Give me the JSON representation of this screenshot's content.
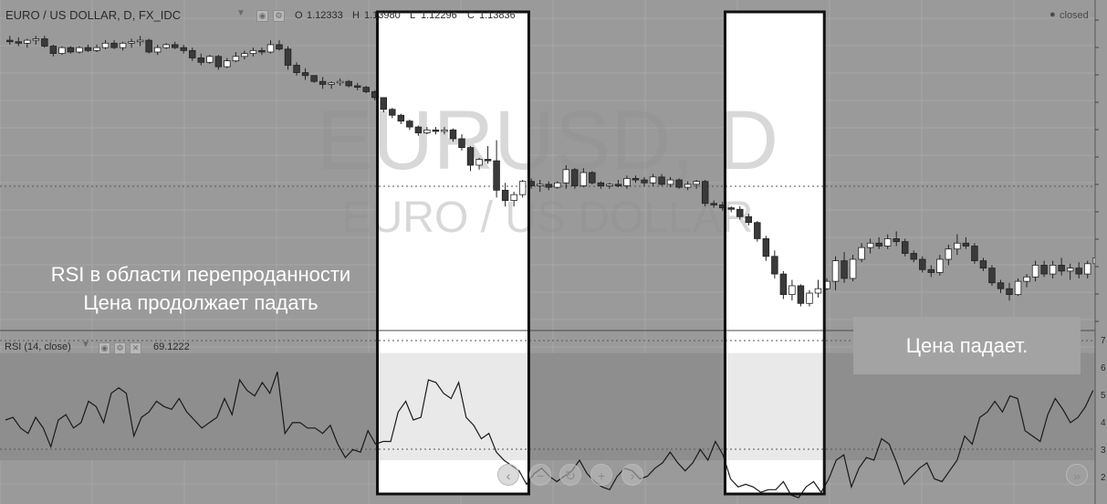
{
  "header": {
    "symbol": "EURO / US DOLLAR, D, FX_IDC",
    "o_label": "O",
    "o_value": "1.12333",
    "h_label": "H",
    "h_value": "1.13980",
    "l_label": "L",
    "l_value": "1.12296",
    "c_label": "C",
    "c_value": "1.13836",
    "status": "closed"
  },
  "watermark": {
    "main": "EURUSD, D",
    "sub": "EURO / US DOLLAR"
  },
  "rsi_header": {
    "name": "RSI (14, close)",
    "value": "69.1222"
  },
  "annotations": {
    "left_line1": "RSI в области перепроданности",
    "left_line2": "Цена продолжает падать",
    "right_box": "Цена падает."
  },
  "rsi_axis_labels": [
    "7",
    "6",
    "5",
    "4",
    "3",
    "2"
  ],
  "nav_icons": [
    "chevron-left-icon",
    "minus-icon",
    "reset-icon",
    "plus-icon",
    "chevron-right-icon",
    "fast-forward-icon"
  ],
  "colors": {
    "background": "#9a9a9a",
    "highlight": "#ffffff",
    "bear": "#3a3a3a",
    "bull": "#ffffff",
    "rsi_line": "#1a1a1a"
  },
  "chart_data": [
    {
      "type": "candlestick",
      "title": "EURO / US DOLLAR, D, FX_IDC",
      "series": [
        {
          "name": "EURUSD",
          "candles": [
            [
              1.125,
              1.128,
              1.122,
              1.124
            ],
            [
              1.124,
              1.127,
              1.121,
              1.123
            ],
            [
              1.123,
              1.126,
              1.12,
              1.125
            ],
            [
              1.125,
              1.128,
              1.122,
              1.126
            ],
            [
              1.126,
              1.128,
              1.12,
              1.121
            ],
            [
              1.121,
              1.122,
              1.114,
              1.116
            ],
            [
              1.116,
              1.121,
              1.115,
              1.12
            ],
            [
              1.12,
              1.121,
              1.116,
              1.117
            ],
            [
              1.117,
              1.121,
              1.116,
              1.12
            ],
            [
              1.12,
              1.122,
              1.117,
              1.118
            ],
            [
              1.118,
              1.122,
              1.117,
              1.12
            ],
            [
              1.12,
              1.125,
              1.119,
              1.123
            ],
            [
              1.123,
              1.125,
              1.119,
              1.12
            ],
            [
              1.12,
              1.124,
              1.118,
              1.123
            ],
            [
              1.123,
              1.126,
              1.12,
              1.124
            ],
            [
              1.124,
              1.128,
              1.121,
              1.125
            ],
            [
              1.125,
              1.126,
              1.116,
              1.117
            ],
            [
              1.117,
              1.122,
              1.115,
              1.12
            ],
            [
              1.12,
              1.123,
              1.119,
              1.122
            ],
            [
              1.122,
              1.124,
              1.119,
              1.12
            ],
            [
              1.12,
              1.122,
              1.116,
              1.118
            ],
            [
              1.118,
              1.12,
              1.111,
              1.113
            ],
            [
              1.113,
              1.116,
              1.108,
              1.11
            ],
            [
              1.11,
              1.115,
              1.109,
              1.114
            ],
            [
              1.114,
              1.115,
              1.105,
              1.107
            ],
            [
              1.107,
              1.113,
              1.106,
              1.111
            ],
            [
              1.111,
              1.117,
              1.11,
              1.114
            ],
            [
              1.114,
              1.118,
              1.112,
              1.116
            ],
            [
              1.116,
              1.12,
              1.114,
              1.118
            ],
            [
              1.118,
              1.12,
              1.115,
              1.117
            ],
            [
              1.117,
              1.125,
              1.116,
              1.122
            ],
            [
              1.122,
              1.125,
              1.118,
              1.119
            ],
            [
              1.119,
              1.121,
              1.105,
              1.108
            ],
            [
              1.108,
              1.11,
              1.101,
              1.103
            ],
            [
              1.103,
              1.106,
              1.098,
              1.101
            ],
            [
              1.101,
              1.101,
              1.096,
              1.097
            ],
            [
              1.097,
              1.1,
              1.092,
              1.095
            ],
            [
              1.095,
              1.097,
              1.092,
              1.096
            ],
            [
              1.096,
              1.099,
              1.094,
              1.097
            ],
            [
              1.097,
              1.098,
              1.093,
              1.094
            ],
            [
              1.094,
              1.096,
              1.091,
              1.093
            ],
            [
              1.093,
              1.094,
              1.089,
              1.09
            ],
            [
              1.09,
              1.091,
              1.084,
              1.086
            ],
            [
              1.086,
              1.086,
              1.076,
              1.078
            ],
            [
              1.078,
              1.079,
              1.072,
              1.074
            ],
            [
              1.074,
              1.075,
              1.068,
              1.07
            ],
            [
              1.07,
              1.071,
              1.064,
              1.066
            ],
            [
              1.066,
              1.067,
              1.06,
              1.062
            ],
            [
              1.062,
              1.066,
              1.061,
              1.064
            ],
            [
              1.064,
              1.066,
              1.061,
              1.063
            ],
            [
              1.063,
              1.066,
              1.061,
              1.064
            ],
            [
              1.064,
              1.065,
              1.056,
              1.058
            ],
            [
              1.058,
              1.061,
              1.05,
              1.052
            ],
            [
              1.052,
              1.053,
              1.036,
              1.04
            ],
            [
              1.04,
              1.045,
              1.037,
              1.044
            ],
            [
              1.044,
              1.053,
              1.041,
              1.043
            ],
            [
              1.043,
              1.057,
              1.018,
              1.023
            ],
            [
              1.023,
              1.028,
              1.012,
              1.016
            ],
            [
              1.016,
              1.022,
              1.012,
              1.02
            ],
            [
              1.02,
              1.03,
              1.018,
              1.029
            ],
            [
              1.029,
              1.031,
              1.024,
              1.026
            ],
            [
              1.026,
              1.03,
              1.022,
              1.027
            ],
            [
              1.027,
              1.029,
              1.023,
              1.025
            ],
            [
              1.025,
              1.029,
              1.024,
              1.028
            ],
            [
              1.028,
              1.04,
              1.024,
              1.037
            ],
            [
              1.037,
              1.038,
              1.024,
              1.026
            ],
            [
              1.026,
              1.038,
              1.025,
              1.035
            ],
            [
              1.035,
              1.036,
              1.027,
              1.028
            ],
            [
              1.028,
              1.029,
              1.024,
              1.026
            ],
            [
              1.026,
              1.028,
              1.024,
              1.027
            ],
            [
              1.027,
              1.03,
              1.025,
              1.026
            ],
            [
              1.026,
              1.033,
              1.024,
              1.031
            ],
            [
              1.031,
              1.033,
              1.028,
              1.03
            ],
            [
              1.03,
              1.032,
              1.026,
              1.028
            ],
            [
              1.028,
              1.034,
              1.026,
              1.032
            ],
            [
              1.032,
              1.034,
              1.026,
              1.027
            ],
            [
              1.027,
              1.032,
              1.025,
              1.03
            ],
            [
              1.03,
              1.031,
              1.024,
              1.025
            ],
            [
              1.025,
              1.029,
              1.023,
              1.027
            ],
            [
              1.027,
              1.03,
              1.024,
              1.029
            ],
            [
              1.029,
              1.03,
              1.012,
              1.014
            ],
            [
              1.014,
              1.016,
              1.011,
              1.013
            ],
            [
              1.013,
              1.015,
              1.009,
              1.011
            ],
            [
              1.011,
              1.012,
              1.008,
              1.01
            ],
            [
              1.01,
              1.012,
              1.003,
              1.005
            ],
            [
              1.005,
              1.007,
              0.999,
              1.001
            ],
            [
              1.001,
              1.002,
              0.988,
              0.99
            ],
            [
              0.99,
              0.992,
              0.975,
              0.978
            ],
            [
              0.978,
              0.982,
              0.963,
              0.966
            ],
            [
              0.966,
              0.968,
              0.949,
              0.952
            ],
            [
              0.952,
              0.962,
              0.948,
              0.958
            ],
            [
              0.958,
              0.959,
              0.944,
              0.946
            ],
            [
              0.946,
              0.955,
              0.944,
              0.953
            ],
            [
              0.953,
              0.962,
              0.95,
              0.956
            ],
            [
              0.956,
              0.963,
              0.955,
              0.961
            ],
            [
              0.961,
              0.978,
              0.955,
              0.975
            ],
            [
              0.975,
              0.981,
              0.96,
              0.963
            ],
            [
              0.963,
              0.979,
              0.961,
              0.976
            ],
            [
              0.976,
              0.987,
              0.974,
              0.984
            ],
            [
              0.984,
              0.99,
              0.98,
              0.987
            ],
            [
              0.987,
              0.991,
              0.983,
              0.985
            ],
            [
              0.985,
              0.993,
              0.983,
              0.99
            ],
            [
              0.99,
              0.995,
              0.985,
              0.988
            ],
            [
              0.988,
              0.99,
              0.978,
              0.98
            ],
            [
              0.98,
              0.982,
              0.974,
              0.976
            ],
            [
              0.976,
              0.978,
              0.967,
              0.969
            ],
            [
              0.969,
              0.972,
              0.964,
              0.967
            ],
            [
              0.967,
              0.979,
              0.965,
              0.976
            ],
            [
              0.976,
              0.986,
              0.972,
              0.983
            ],
            [
              0.983,
              0.993,
              0.979,
              0.987
            ],
            [
              0.987,
              0.991,
              0.983,
              0.985
            ],
            [
              0.985,
              0.987,
              0.973,
              0.975
            ],
            [
              0.975,
              0.977,
              0.968,
              0.97
            ],
            [
              0.97,
              0.972,
              0.958,
              0.96
            ],
            [
              0.96,
              0.962,
              0.953,
              0.956
            ],
            [
              0.956,
              0.96,
              0.948,
              0.952
            ],
            [
              0.952,
              0.963,
              0.951,
              0.961
            ],
            [
              0.961,
              0.966,
              0.957,
              0.964
            ],
            [
              0.964,
              0.975,
              0.961,
              0.972
            ],
            [
              0.972,
              0.975,
              0.964,
              0.966
            ],
            [
              0.966,
              0.975,
              0.963,
              0.972
            ],
            [
              0.972,
              0.977,
              0.965,
              0.968
            ],
            [
              0.968,
              0.973,
              0.962,
              0.97
            ],
            [
              0.97,
              0.974,
              0.963,
              0.966
            ],
            [
              0.966,
              0.975,
              0.963,
              0.973
            ],
            [
              0.973,
              0.98,
              0.97,
              0.977
            ]
          ]
        }
      ],
      "value_range": [
        0.935,
        1.135
      ],
      "highlight_candle_ranges": [
        [
          43,
          59
        ],
        [
          83,
          93
        ]
      ]
    },
    {
      "type": "line",
      "title": "RSI (14, close)",
      "ylim": [
        15,
        75
      ],
      "series": [
        {
          "name": "RSI (14, close)",
          "values": [
            45,
            46,
            42,
            40,
            46,
            42,
            35,
            45,
            47,
            42,
            44,
            52,
            50,
            44,
            55,
            57,
            55,
            39,
            46,
            48,
            52,
            50,
            49,
            53,
            48,
            45,
            42,
            44,
            46,
            53,
            47,
            60,
            56,
            54,
            59,
            55,
            63,
            40,
            44,
            44,
            42,
            42,
            40,
            43,
            36,
            31,
            34,
            33,
            41,
            36,
            37,
            37,
            48,
            52,
            45,
            46,
            60,
            59,
            55,
            53,
            59,
            46,
            43,
            38,
            40,
            33,
            30,
            28,
            26,
            21,
            25,
            27,
            24,
            22,
            24,
            26,
            30,
            25,
            22,
            20,
            19,
            24,
            27,
            26,
            23,
            24,
            27,
            29,
            33,
            29,
            26,
            29,
            34,
            30,
            37,
            32,
            23,
            20,
            21,
            20,
            18,
            19,
            19,
            22,
            17,
            16,
            20,
            22,
            18,
            23,
            30,
            32,
            20,
            27,
            31,
            30,
            38,
            36,
            29,
            21,
            24,
            27,
            29,
            23,
            22,
            26,
            30,
            39,
            36,
            46,
            48,
            52,
            48,
            54,
            53,
            41,
            39,
            37,
            47,
            53,
            49,
            44,
            46,
            50,
            56
          ]
        }
      ]
    }
  ]
}
